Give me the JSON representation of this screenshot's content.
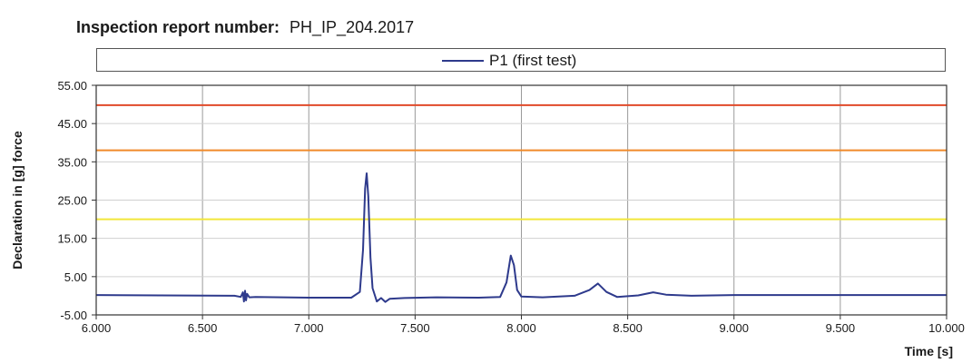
{
  "report": {
    "label": "Inspection report number:",
    "number": "PH_IP_204.2017"
  },
  "chart_data": {
    "type": "line",
    "xlabel": "Time [s]",
    "ylabel": "Declaration in [g] force",
    "xlim": [
      6.0,
      10.0
    ],
    "ylim": [
      -5.0,
      55.0
    ],
    "x_ticks": [
      "6.000",
      "6.500",
      "7.000",
      "7.500",
      "8.000",
      "8.500",
      "9.000",
      "9.500",
      "10.000"
    ],
    "y_ticks": [
      "55.00",
      "45.00",
      "35.00",
      "25.00",
      "15.00",
      "5.00",
      "-5.00"
    ],
    "grid": true,
    "legend": "top-center",
    "series": [
      {
        "name": "P1 (first test)",
        "color": "#2e3a8c",
        "points": [
          [
            6.0,
            0.2
          ],
          [
            6.3,
            0.1
          ],
          [
            6.65,
            0.0
          ],
          [
            6.68,
            -0.3
          ],
          [
            6.69,
            0.9
          ],
          [
            6.695,
            -1.5
          ],
          [
            6.7,
            1.3
          ],
          [
            6.705,
            -1.2
          ],
          [
            6.71,
            0.5
          ],
          [
            6.72,
            -0.4
          ],
          [
            6.75,
            -0.3
          ],
          [
            7.0,
            -0.5
          ],
          [
            7.2,
            -0.5
          ],
          [
            7.24,
            1.0
          ],
          [
            7.255,
            12.0
          ],
          [
            7.265,
            28.0
          ],
          [
            7.272,
            32.0
          ],
          [
            7.28,
            26.0
          ],
          [
            7.29,
            10.0
          ],
          [
            7.3,
            2.0
          ],
          [
            7.32,
            -1.5
          ],
          [
            7.34,
            -0.6
          ],
          [
            7.36,
            -1.6
          ],
          [
            7.38,
            -0.8
          ],
          [
            7.45,
            -0.6
          ],
          [
            7.6,
            -0.4
          ],
          [
            7.8,
            -0.5
          ],
          [
            7.9,
            -0.3
          ],
          [
            7.93,
            3.5
          ],
          [
            7.95,
            10.5
          ],
          [
            7.965,
            8.0
          ],
          [
            7.98,
            1.5
          ],
          [
            8.0,
            -0.2
          ],
          [
            8.1,
            -0.4
          ],
          [
            8.25,
            0.0
          ],
          [
            8.32,
            1.5
          ],
          [
            8.36,
            3.2
          ],
          [
            8.4,
            1.0
          ],
          [
            8.45,
            -0.3
          ],
          [
            8.55,
            0.1
          ],
          [
            8.62,
            0.9
          ],
          [
            8.68,
            0.3
          ],
          [
            8.8,
            0.0
          ],
          [
            9.0,
            0.2
          ],
          [
            9.5,
            0.2
          ],
          [
            10.0,
            0.2
          ]
        ]
      }
    ],
    "reference_lines": [
      {
        "value": 49.8,
        "color": "#e04a2a"
      },
      {
        "value": 38.0,
        "color": "#f08a2a"
      },
      {
        "value": 20.0,
        "color": "#f2e63a"
      }
    ]
  }
}
